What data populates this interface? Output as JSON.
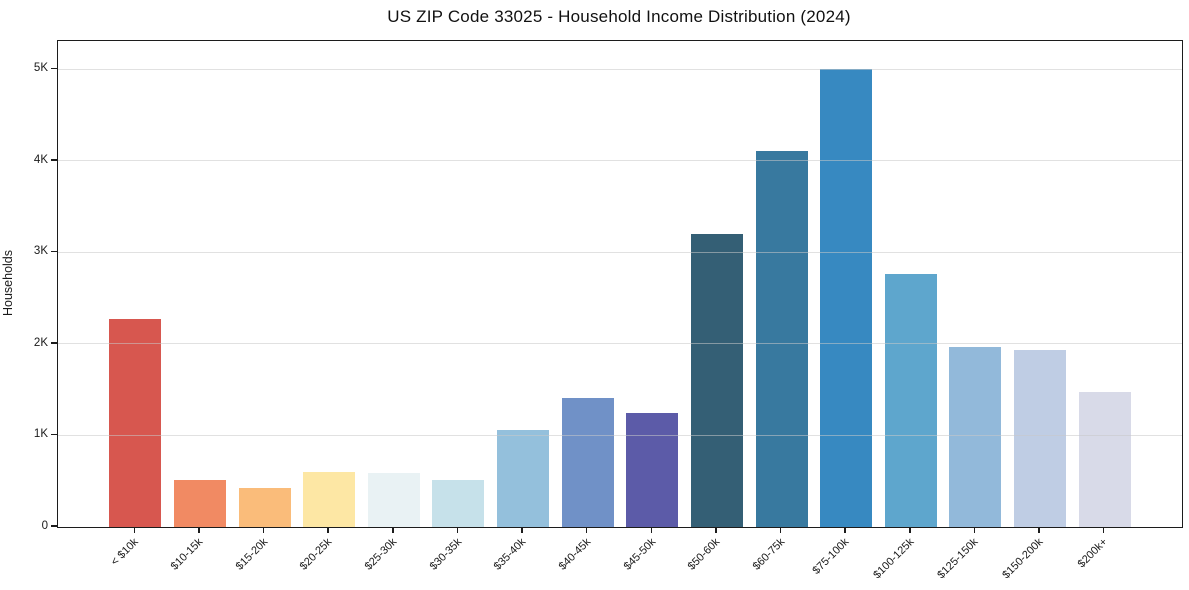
{
  "chart_data": {
    "type": "bar",
    "title": "US ZIP Code 33025 - Household Income Distribution (2024)",
    "xlabel": "",
    "ylabel": "Households",
    "categories": [
      "< $10k",
      "$10-15k",
      "$15-20k",
      "$20-25k",
      "$25-30k",
      "$30-35k",
      "$35-40k",
      "$40-45k",
      "$45-50k",
      "$50-60k",
      "$60-75k",
      "$75-100k",
      "$100-125k",
      "$125-150k",
      "$150-200k",
      "$200k+"
    ],
    "values": [
      2270,
      515,
      430,
      600,
      590,
      510,
      1060,
      1410,
      1250,
      3200,
      4110,
      5000,
      2760,
      1970,
      1930,
      1470
    ],
    "bar_colors": [
      "#d7574f",
      "#f18a63",
      "#fabc7a",
      "#fde7a4",
      "#e9f2f4",
      "#c6e1ea",
      "#94c0dc",
      "#7091c7",
      "#5c5ba8",
      "#345f75",
      "#38799f",
      "#3789c1",
      "#5ea6cd",
      "#92b9da",
      "#bfcde4",
      "#d8dae8"
    ],
    "ytick_labels": [
      "0",
      "1K",
      "2K",
      "3K",
      "4K",
      "5K"
    ],
    "ytick_values": [
      0,
      1000,
      2000,
      3000,
      4000,
      5000
    ],
    "ylim": [
      0,
      5310
    ],
    "grid": "horizontal-light",
    "legend": "none",
    "background_color": "#ffffff",
    "axis_color": "#1c1c1c"
  }
}
